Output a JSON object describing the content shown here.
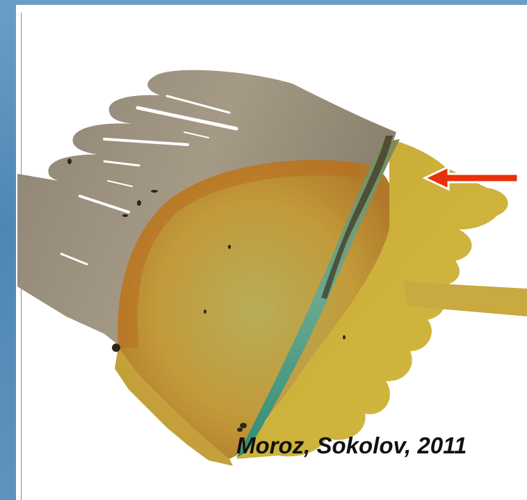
{
  "caption": {
    "citation": "Moroz, Sokolov, 2011"
  },
  "colors": {
    "background_frame": "#5b8fb8",
    "panel": "#ffffff",
    "shelf_grey": "#9a9080",
    "basin_yellow": "#c8a830",
    "slope_orange": "#c0781e",
    "channel_teal": "#5aa888",
    "arrow_red": "#e8300a"
  },
  "icons": {
    "pointer": "left-arrow-icon"
  }
}
